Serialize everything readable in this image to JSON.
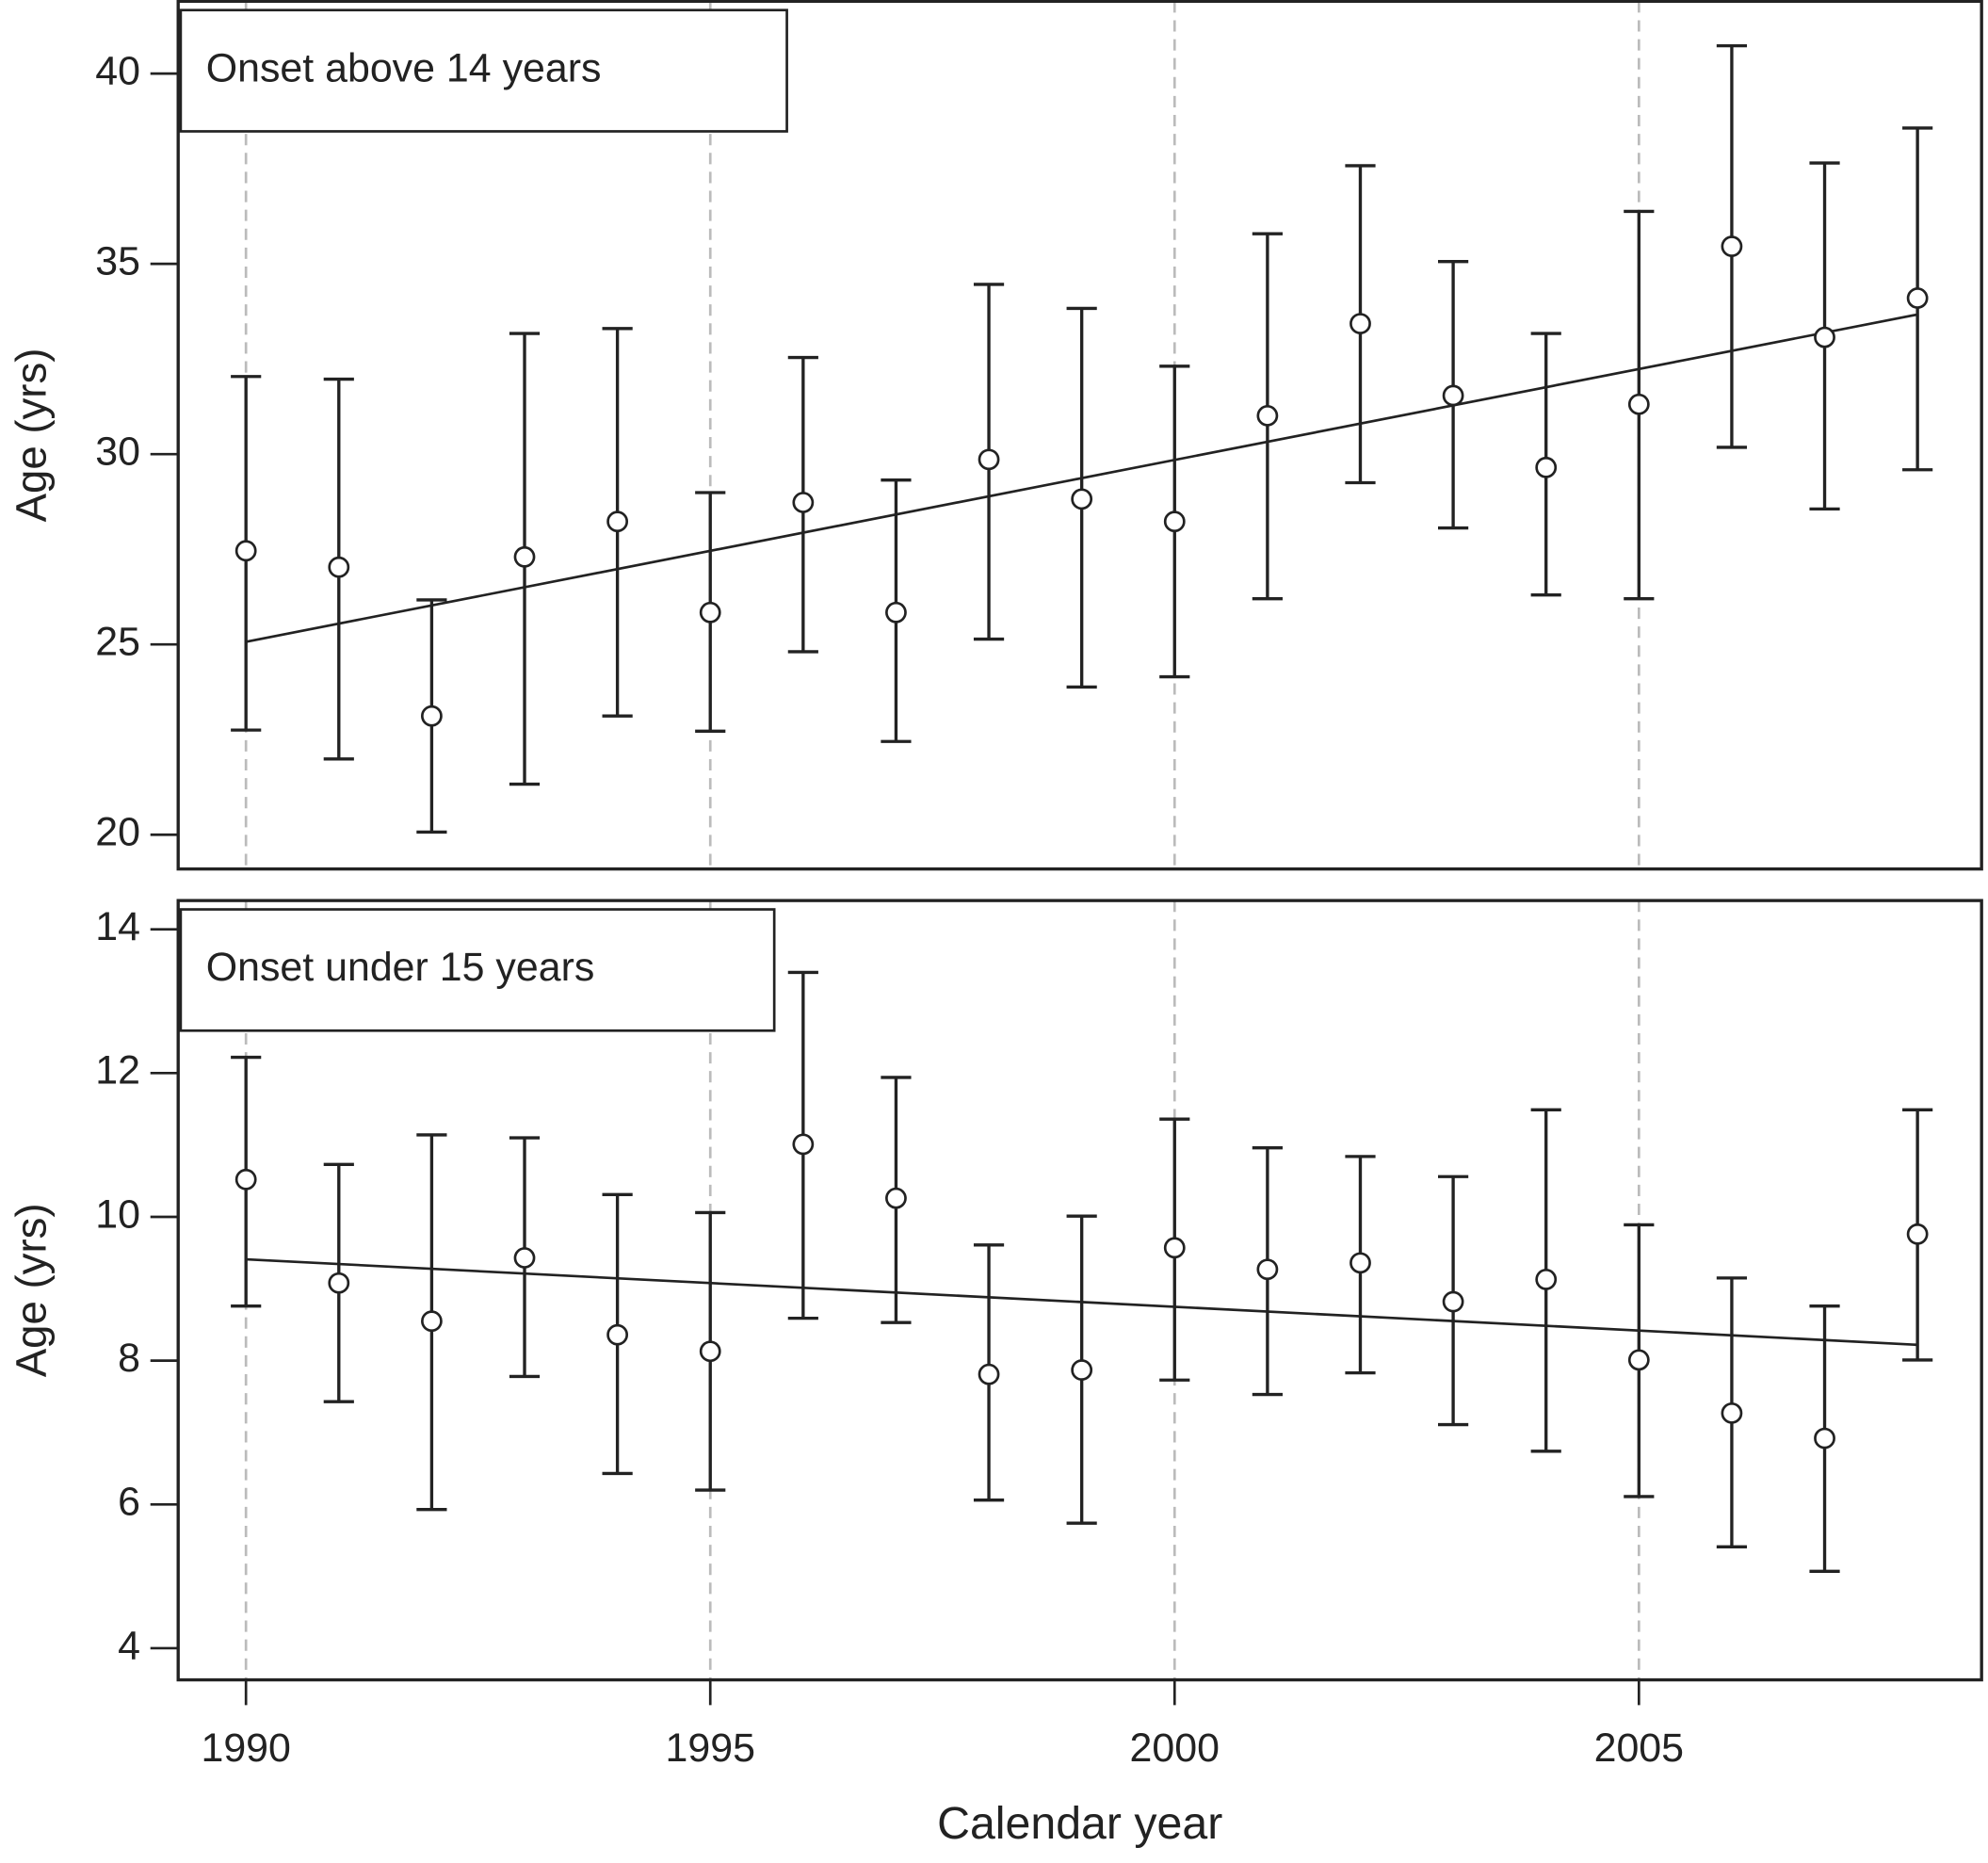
{
  "chart_data": [
    {
      "type": "errorbar",
      "annotation": "Onset above 14 years",
      "ylabel": "Age (yrs)",
      "x": [
        1990,
        1991,
        1992,
        1993,
        1994,
        1995,
        1996,
        1997,
        1998,
        1999,
        2000,
        2001,
        2002,
        2003,
        2004,
        2005,
        2006,
        2007,
        2008
      ],
      "values": [
        27.46,
        27.03,
        23.12,
        27.3,
        28.23,
        25.84,
        28.73,
        25.84,
        29.86,
        28.82,
        28.23,
        31.01,
        33.43,
        31.54,
        29.65,
        31.31,
        35.46,
        33.07,
        34.1
      ],
      "lower": [
        22.75,
        21.99,
        20.07,
        21.33,
        23.12,
        22.72,
        24.81,
        22.45,
        25.14,
        23.88,
        24.15,
        26.2,
        29.25,
        28.06,
        26.3,
        26.2,
        30.18,
        28.56,
        29.59
      ],
      "upper": [
        32.04,
        31.97,
        26.17,
        33.17,
        33.3,
        28.99,
        32.54,
        29.32,
        34.46,
        33.83,
        32.31,
        35.79,
        37.58,
        35.06,
        33.17,
        36.38,
        40.73,
        37.65,
        38.57
      ],
      "fit_line": {
        "x": [
          1990,
          2008
        ],
        "y": [
          25.07,
          33.67
        ]
      },
      "xlim": [
        1989.27,
        2008.69
      ],
      "ylim": [
        19.1,
        41.9
      ],
      "xticks": [
        1990,
        1995,
        2000,
        2005
      ],
      "yticks": [
        20,
        25,
        30,
        35,
        40
      ],
      "show_xtick_labels": false,
      "x_grid": true,
      "color": "#222222",
      "grid_color": "#bbbbbb"
    },
    {
      "type": "errorbar",
      "annotation": "Onset under 15 years",
      "ylabel": "Age (yrs)",
      "xlabel": "Calendar year",
      "x": [
        1990,
        1991,
        1992,
        1993,
        1994,
        1995,
        1996,
        1997,
        1998,
        1999,
        2000,
        2001,
        2002,
        2003,
        2004,
        2005,
        2006,
        2007,
        2008
      ],
      "values": [
        10.52,
        9.08,
        8.55,
        9.43,
        8.36,
        8.13,
        11.01,
        10.26,
        7.81,
        7.87,
        9.57,
        9.27,
        9.36,
        8.82,
        9.13,
        8.01,
        7.27,
        6.92,
        9.76
      ],
      "lower": [
        8.76,
        7.43,
        5.93,
        7.78,
        6.43,
        6.2,
        8.59,
        8.53,
        6.06,
        5.74,
        7.73,
        7.53,
        7.83,
        7.11,
        6.74,
        6.11,
        5.41,
        5.07,
        8.01
      ],
      "upper": [
        12.22,
        10.73,
        11.14,
        11.1,
        10.31,
        10.06,
        13.4,
        11.94,
        9.61,
        10.01,
        11.36,
        10.96,
        10.84,
        10.56,
        11.49,
        9.89,
        9.15,
        8.76,
        11.49
      ],
      "fit_line": {
        "x": [
          1990,
          2008
        ],
        "y": [
          9.41,
          8.22
        ]
      },
      "xlim": [
        1989.27,
        2008.69
      ],
      "ylim": [
        3.56,
        14.4
      ],
      "xticks": [
        1990,
        1995,
        2000,
        2005
      ],
      "yticks": [
        4,
        6,
        8,
        10,
        12,
        14
      ],
      "show_xtick_labels": true,
      "x_grid": true,
      "color": "#222222",
      "grid_color": "#bbbbbb"
    }
  ]
}
